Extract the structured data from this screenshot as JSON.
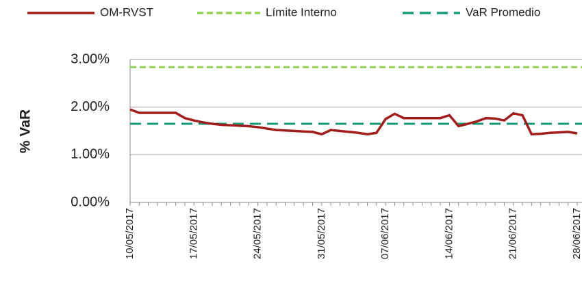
{
  "chart_data": {
    "type": "line",
    "y_label": "% VaR",
    "categories": [
      "10/05/2017",
      null,
      null,
      null,
      null,
      null,
      null,
      "17/05/2017",
      null,
      null,
      null,
      null,
      null,
      null,
      "24/05/2017",
      null,
      null,
      null,
      null,
      null,
      null,
      "31/05/2017",
      null,
      null,
      null,
      null,
      null,
      null,
      "07/06/2017",
      null,
      null,
      null,
      null,
      null,
      null,
      "14/06/2017",
      null,
      null,
      null,
      null,
      null,
      null,
      "21/06/2017",
      null,
      null,
      null,
      null,
      null,
      null,
      "28/06/2017"
    ],
    "series": [
      {
        "name": "OM-RVST",
        "color": "#a31c1c",
        "values": [
          1.95,
          1.88,
          1.88,
          1.88,
          1.88,
          1.88,
          1.77,
          1.72,
          1.68,
          1.65,
          1.63,
          1.62,
          1.61,
          1.6,
          1.58,
          1.55,
          1.52,
          1.51,
          1.5,
          1.49,
          1.48,
          1.43,
          1.52,
          1.5,
          1.48,
          1.46,
          1.43,
          1.46,
          1.75,
          1.86,
          1.77,
          1.77,
          1.77,
          1.77,
          1.77,
          1.83,
          1.6,
          1.65,
          1.7,
          1.77,
          1.76,
          1.72,
          1.87,
          1.83,
          1.43,
          1.44,
          1.46,
          1.47,
          1.48,
          1.45
        ]
      }
    ],
    "lines": [
      {
        "name": "Límite Interno",
        "color": "#92d050",
        "value": 2.84
      },
      {
        "name": "VaR Promedio",
        "color": "#179a78",
        "value": 1.65
      }
    ],
    "ylim": [
      0,
      3
    ],
    "yticks": [
      {
        "value": 0,
        "label": "0.00%"
      },
      {
        "value": 1,
        "label": "1.00%"
      },
      {
        "value": 2,
        "label": "2.00%"
      },
      {
        "value": 3,
        "label": "3.00%"
      }
    ],
    "grid": true
  }
}
